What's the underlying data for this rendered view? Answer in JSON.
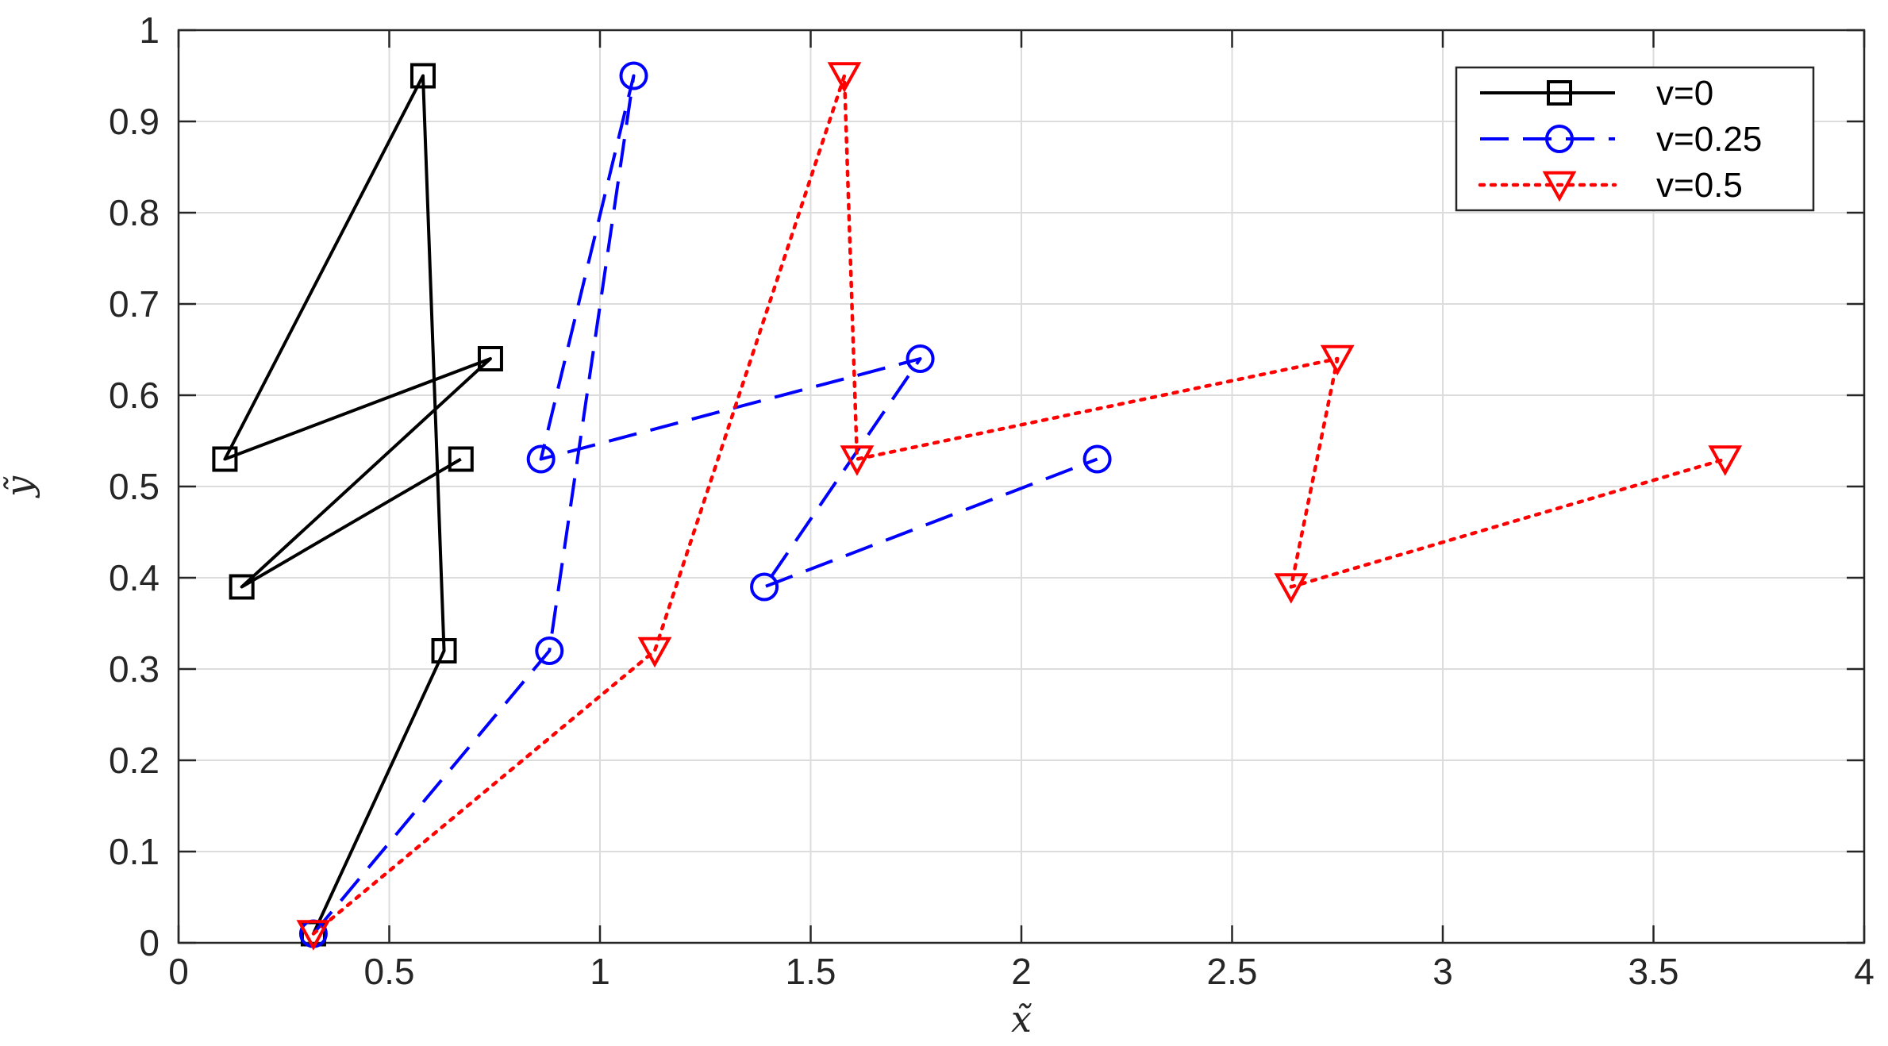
{
  "chart_data": {
    "type": "line",
    "title": "",
    "xlabel": "x̃",
    "ylabel": "ỹ",
    "xlim": [
      0,
      4
    ],
    "ylim": [
      0,
      1
    ],
    "xticks": [
      0,
      0.5,
      1,
      1.5,
      2,
      2.5,
      3,
      3.5,
      4
    ],
    "xtick_labels": [
      "0",
      "0.5",
      "1",
      "1.5",
      "2",
      "2.5",
      "3",
      "3.5",
      "4"
    ],
    "yticks": [
      0,
      0.1,
      0.2,
      0.3,
      0.4,
      0.5,
      0.6,
      0.7,
      0.8,
      0.9,
      1
    ],
    "ytick_labels": [
      "0",
      "0.1",
      "0.2",
      "0.3",
      "0.4",
      "0.5",
      "0.6",
      "0.7",
      "0.8",
      "0.9",
      "1"
    ],
    "grid": true,
    "legend_position": "top-right",
    "series": [
      {
        "name": "v=0",
        "color": "#000000",
        "line_style": "solid",
        "marker": "square",
        "x": [
          0.32,
          0.63,
          0.58,
          0.11,
          0.74,
          0.15,
          0.67
        ],
        "y": [
          0.01,
          0.32,
          0.95,
          0.53,
          0.64,
          0.39,
          0.53
        ]
      },
      {
        "name": "v=0.25",
        "color": "#0000ff",
        "line_style": "dashed",
        "marker": "circle",
        "x": [
          0.32,
          0.88,
          1.08,
          0.86,
          1.76,
          1.39,
          2.18
        ],
        "y": [
          0.01,
          0.32,
          0.95,
          0.53,
          0.64,
          0.39,
          0.53
        ]
      },
      {
        "name": "v=0.5",
        "color": "#ff0000",
        "line_style": "dotted",
        "marker": "triangle-down",
        "x": [
          0.32,
          1.13,
          1.58,
          1.61,
          2.75,
          2.64,
          3.67
        ],
        "y": [
          0.01,
          0.32,
          0.95,
          0.53,
          0.64,
          0.39,
          0.53
        ]
      }
    ]
  }
}
